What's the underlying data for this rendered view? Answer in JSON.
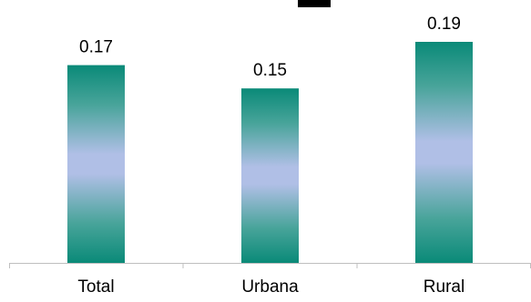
{
  "chart_data": {
    "type": "bar",
    "title": "",
    "xlabel": "",
    "ylabel": "",
    "categories": [
      "Total",
      "Urbana",
      "Rural"
    ],
    "values": [
      0.17,
      0.15,
      0.19
    ],
    "value_labels": [
      "0.17",
      "0.15",
      "0.19"
    ],
    "ylim": [
      0,
      0.2
    ],
    "grid": false,
    "legend": "none",
    "colors": {
      "bar_dark": "#0a8a78",
      "bar_mid": "#48a49a",
      "bar_light": "#b0bfe6",
      "axis": "#bfbfbf",
      "text": "#000000"
    }
  }
}
